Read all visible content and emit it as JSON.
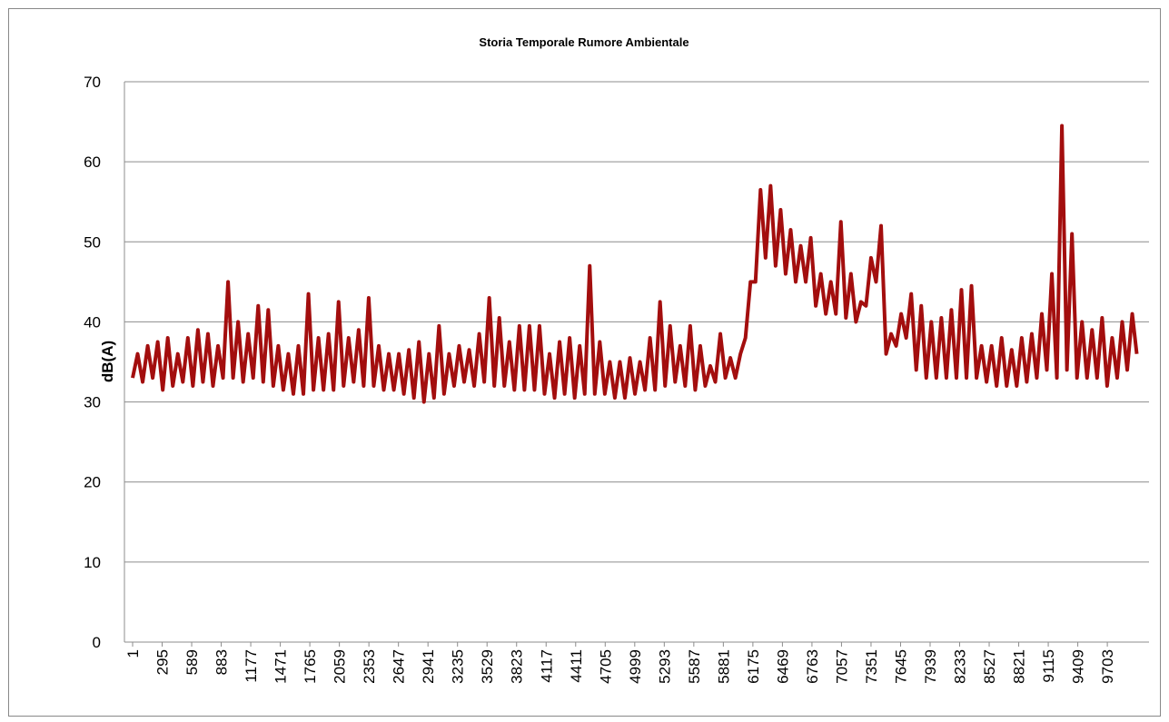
{
  "chart_data": {
    "type": "line",
    "title": "Storia Temporale Rumore Ambientale",
    "y_label": "dB(A)",
    "color": "#a30e0e",
    "grid": true,
    "ylim": [
      0,
      70
    ],
    "yticks": [
      0,
      10,
      20,
      30,
      40,
      50,
      60,
      70
    ],
    "xlim": [
      1,
      10118
    ],
    "xticks": [
      1,
      295,
      589,
      883,
      1177,
      1471,
      1765,
      2059,
      2353,
      2647,
      2941,
      3235,
      3529,
      3823,
      4117,
      4411,
      4705,
      4999,
      5293,
      5587,
      5881,
      6175,
      6469,
      6763,
      7057,
      7351,
      7645,
      7939,
      8233,
      8527,
      8821,
      9115,
      9409,
      9703
    ],
    "x": [
      1,
      51,
      101,
      151,
      201,
      251,
      301,
      351,
      401,
      451,
      501,
      551,
      601,
      651,
      701,
      751,
      801,
      851,
      901,
      951,
      1001,
      1051,
      1101,
      1151,
      1201,
      1251,
      1301,
      1351,
      1401,
      1451,
      1501,
      1551,
      1601,
      1651,
      1701,
      1751,
      1801,
      1851,
      1901,
      1951,
      2001,
      2051,
      2101,
      2151,
      2201,
      2251,
      2301,
      2351,
      2401,
      2451,
      2501,
      2551,
      2601,
      2651,
      2701,
      2751,
      2801,
      2851,
      2901,
      2951,
      3001,
      3051,
      3101,
      3151,
      3201,
      3251,
      3301,
      3351,
      3401,
      3451,
      3501,
      3551,
      3601,
      3651,
      3701,
      3751,
      3801,
      3851,
      3901,
      3951,
      4001,
      4051,
      4101,
      4151,
      4201,
      4251,
      4301,
      4351,
      4401,
      4451,
      4501,
      4551,
      4601,
      4651,
      4701,
      4751,
      4801,
      4851,
      4901,
      4951,
      5001,
      5051,
      5101,
      5151,
      5201,
      5251,
      5301,
      5351,
      5401,
      5451,
      5501,
      5551,
      5601,
      5651,
      5701,
      5751,
      5801,
      5851,
      5901,
      5951,
      6001,
      6051,
      6101,
      6151,
      6201,
      6251,
      6301,
      6351,
      6401,
      6451,
      6501,
      6551,
      6601,
      6651,
      6701,
      6751,
      6801,
      6851,
      6901,
      6951,
      7001,
      7051,
      7101,
      7151,
      7201,
      7251,
      7301,
      7351,
      7401,
      7451,
      7501,
      7551,
      7601,
      7651,
      7701,
      7751,
      7801,
      7851,
      7901,
      7951,
      8001,
      8051,
      8101,
      8151,
      8201,
      8251,
      8301,
      8351,
      8401,
      8451,
      8501,
      8551,
      8601,
      8651,
      8701,
      8751,
      8801,
      8851,
      8901,
      8951,
      9001,
      9051,
      9101,
      9151,
      9201,
      9251,
      9301,
      9351,
      9401,
      9451,
      9501,
      9551,
      9601,
      9651,
      9701,
      9751,
      9801,
      9851,
      9901,
      9951,
      9996
    ],
    "values": [
      33,
      36,
      32.5,
      37,
      33,
      37.5,
      31.5,
      38,
      32,
      36,
      32.5,
      38,
      32,
      39,
      32.5,
      38.5,
      32,
      37,
      33,
      45,
      33,
      40,
      32.5,
      38.5,
      33,
      42,
      32.5,
      41.5,
      32,
      37,
      31.5,
      36,
      31,
      37,
      31,
      43.5,
      31.5,
      38,
      31.5,
      38.5,
      31.5,
      42.5,
      32,
      38,
      32.5,
      39,
      32,
      43,
      32,
      37,
      31.5,
      36,
      31.5,
      36,
      31,
      36.5,
      30.5,
      37.5,
      30,
      36,
      30.5,
      39.5,
      31,
      36,
      32,
      37,
      32.5,
      36.5,
      32,
      38.5,
      32.5,
      43,
      32,
      40.5,
      32,
      37.5,
      31.5,
      39.5,
      31.5,
      39.5,
      31.5,
      39.5,
      31,
      36,
      30.5,
      37.5,
      31,
      38,
      30.5,
      37,
      31,
      47,
      31,
      37.5,
      31,
      35,
      30.5,
      35,
      30.5,
      35.5,
      31,
      35,
      31.5,
      38,
      31.5,
      42.5,
      32,
      39.5,
      32.5,
      37,
      32,
      39.5,
      31.5,
      37,
      32,
      34.5,
      32.5,
      38.5,
      33,
      35.5,
      33,
      36,
      38,
      45,
      45,
      56.5,
      48,
      57,
      47,
      54,
      46,
      51.5,
      45,
      49.5,
      45,
      50.5,
      42,
      46,
      41,
      45,
      41,
      52.5,
      40.5,
      46,
      40,
      42.5,
      42,
      48,
      45,
      52,
      36,
      38.5,
      37,
      41,
      38,
      43.5,
      34,
      42,
      33,
      40,
      33,
      40.5,
      33,
      41.5,
      33,
      44,
      33,
      44.5,
      33,
      37,
      32.5,
      37,
      32,
      38,
      32,
      36.5,
      32,
      38,
      32.5,
      38.5,
      33,
      41,
      34,
      46,
      33,
      64.5,
      34,
      51,
      33,
      40,
      33,
      39,
      33,
      40.5,
      32,
      38,
      33,
      40,
      34,
      41,
      36
    ]
  }
}
